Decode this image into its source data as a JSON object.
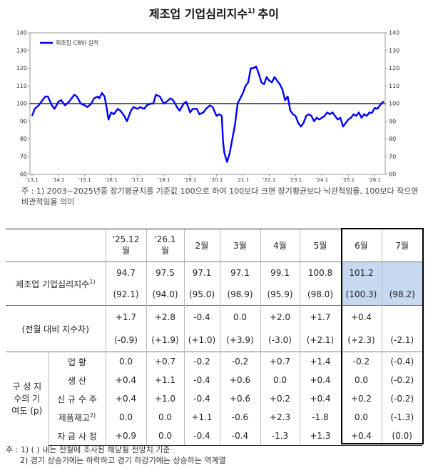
{
  "title": "제조업 기업심리지수",
  "title_sup": "1)",
  "title_suffix": "추이",
  "chart_data": {
    "type": "line",
    "x": [
      2013.0,
      2013.1,
      2013.25,
      2013.4,
      2013.5,
      2013.6,
      2013.75,
      2013.85,
      2014.0,
      2014.1,
      2014.25,
      2014.4,
      2014.5,
      2014.6,
      2014.7,
      2014.85,
      2015.0,
      2015.1,
      2015.25,
      2015.35,
      2015.5,
      2015.55,
      2015.65,
      2015.75,
      2015.85,
      2015.9,
      2016.0,
      2016.1,
      2016.25,
      2016.35,
      2016.5,
      2016.6,
      2016.75,
      2016.85,
      2017.0,
      2017.1,
      2017.25,
      2017.35,
      2017.5,
      2017.6,
      2017.7,
      2017.85,
      2018.0,
      2018.1,
      2018.25,
      2018.35,
      2018.5,
      2018.6,
      2018.75,
      2018.85,
      2019.0,
      2019.1,
      2019.25,
      2019.35,
      2019.5,
      2019.6,
      2019.75,
      2019.85,
      2020.0,
      2020.1,
      2020.2,
      2020.25,
      2020.3,
      2020.4,
      2020.5,
      2020.6,
      2020.7,
      2020.8,
      2020.9,
      2021.0,
      2021.1,
      2021.2,
      2021.3,
      2021.4,
      2021.5,
      2021.6,
      2021.7,
      2021.8,
      2021.9,
      2022.0,
      2022.1,
      2022.2,
      2022.3,
      2022.4,
      2022.5,
      2022.6,
      2022.7,
      2022.8,
      2022.9,
      2023.0,
      2023.1,
      2023.2,
      2023.3,
      2023.4,
      2023.5,
      2023.6,
      2023.7,
      2023.8,
      2023.9,
      2024.0,
      2024.1,
      2024.2,
      2024.3,
      2024.4,
      2024.5,
      2024.6,
      2024.7,
      2024.8,
      2024.9,
      2025.0,
      2025.1,
      2025.2,
      2025.3,
      2025.4,
      2025.5,
      2025.6,
      2025.7,
      2025.8,
      2025.9,
      2026.0,
      2026.1,
      2026.2,
      2026.3,
      2026.35
    ],
    "series": [
      {
        "name": "제조업 CBSI 실적",
        "color": "#0000ff",
        "values": [
          93,
          97,
          99,
          102,
          104,
          104,
          99,
          97,
          101,
          102,
          99,
          101,
          103,
          105,
          104,
          100,
          99,
          98,
          100,
          103,
          104,
          103,
          106,
          104,
          96,
          91,
          95,
          94,
          97,
          96,
          93,
          90,
          96,
          98,
          97,
          98,
          97,
          99,
          100,
          100,
          105,
          104,
          100,
          101,
          103,
          102,
          98,
          96,
          100,
          101,
          95,
          97,
          97,
          94,
          95,
          97,
          99,
          98,
          93,
          94,
          93,
          78,
          72,
          67,
          72,
          80,
          88,
          100,
          103,
          106,
          110,
          112,
          120,
          120,
          121,
          117,
          112,
          111,
          115,
          113,
          112,
          115,
          113,
          111,
          108,
          102,
          104,
          96,
          94,
          93,
          89,
          87,
          89,
          93,
          94,
          93,
          90,
          92,
          91,
          92,
          93,
          95,
          94,
          95,
          93,
          91,
          92,
          87,
          89,
          91,
          92,
          94,
          93,
          95,
          92,
          94,
          93,
          95,
          94.7,
          97.5,
          97.1,
          99,
          100.8,
          101.2
        ]
      }
    ],
    "xlim": [
      2012.92,
      2026.4
    ],
    "ylim": [
      60,
      140
    ],
    "yticks": [
      60,
      70,
      80,
      90,
      100,
      110,
      120,
      130,
      140
    ],
    "xticks": [
      {
        "value": 2013,
        "label": "'13.1"
      },
      {
        "value": 2014,
        "label": "'14.1"
      },
      {
        "value": 2015,
        "label": "'15.1"
      },
      {
        "value": 2016,
        "label": "'16.1"
      },
      {
        "value": 2017,
        "label": "'17.1"
      },
      {
        "value": 2018,
        "label": "'18.1"
      },
      {
        "value": 2019,
        "label": "'19.1"
      },
      {
        "value": 2020,
        "label": "'20.1"
      },
      {
        "value": 2021,
        "label": "'21.1"
      },
      {
        "value": 2022,
        "label": "'22.1"
      },
      {
        "value": 2023,
        "label": "'23.1"
      },
      {
        "value": 2024,
        "label": "'24.1"
      },
      {
        "value": 2025,
        "label": "'25.1"
      },
      {
        "value": 2026,
        "label": "'26.1"
      }
    ],
    "reference_line": 100
  },
  "chart_note": "주 : 1) 2003~2025년중 장기평균치를 기준값 100으로 하여 100보다 크면 장기평균보다 낙관적임을, 100보다 작으면 비관적임을 의미",
  "table": {
    "columns": [
      "'25.12월",
      "'26.1월",
      "2월",
      "3월",
      "4월",
      "5월",
      "6월",
      "7월"
    ],
    "index_row": {
      "label": "제조업 기업심리지수",
      "label_sup": "1)",
      "actual": [
        "94.7",
        "97.5",
        "97.1",
        "97.1",
        "99.1",
        "100.8",
        "101.2",
        null
      ],
      "forecast": [
        "(92.1)",
        "(94.0)",
        "(95.0)",
        "(98.9)",
        "(95.9)",
        "(98.0)",
        "(100.3)",
        "(98.2)"
      ]
    },
    "diff_row": {
      "label": "(전월 대비 지수차)",
      "actual": [
        "+1.7",
        "+2.8",
        "-0.4",
        "0.0",
        "+2.0",
        "+1.7",
        "+0.4",
        null
      ],
      "forecast": [
        "(-0.9)",
        "(+1.9)",
        "(+1.0)",
        "(+3.9)",
        "(-3.0)",
        "(+2.1)",
        "(+2.3)",
        "(-2.1)"
      ]
    },
    "contrib": {
      "label": "구 성 지수의 기여도 (p)",
      "rows": [
        {
          "label": "업 황",
          "values": [
            "0.0",
            "+0.7",
            "-0.2",
            "-0.2",
            "+0.7",
            "+1.4",
            "-0.2",
            "(-0.4)"
          ]
        },
        {
          "label": "생 산",
          "values": [
            "+0.4",
            "+1.1",
            "-0.4",
            "+0.6",
            "0.0",
            "+0.4",
            "0.0",
            "(-0.2)"
          ]
        },
        {
          "label": "신 규 수 주",
          "values": [
            "+0.4",
            "+1.0",
            "-0.4",
            "+0.6",
            "+0.2",
            "+0.4",
            "+0.2",
            "(-0.2)"
          ]
        },
        {
          "label": "제품재고",
          "label_sup": "2)",
          "values": [
            "0.0",
            "0.0",
            "+1.1",
            "-0.6",
            "+2.3",
            "-1.8",
            "0.0",
            "(-1.3)"
          ]
        },
        {
          "label": "자 금 사 정",
          "values": [
            "+0.9",
            "0.0",
            "-0.4",
            "-0.4",
            "-1.3",
            "+1.3",
            "+0.4",
            "(0.0)"
          ]
        }
      ]
    }
  },
  "notes": [
    "주 : 1) (    ) 내는 전월에 조사된 해당월 전망치 기준",
    "2) 경기 상승기에는 하락하고 경기 하강기에는 상승하는 역계열"
  ]
}
